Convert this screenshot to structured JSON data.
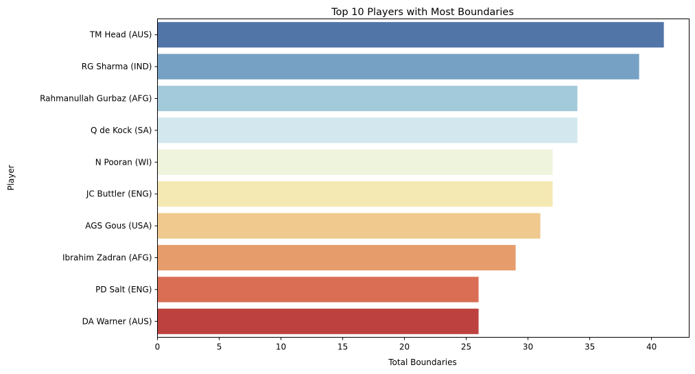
{
  "chart_data": {
    "type": "bar",
    "orientation": "horizontal",
    "title": "Top 10 Players with Most Boundaries",
    "xlabel": "Total Boundaries",
    "ylabel": "Player",
    "xlim": [
      0,
      43.05
    ],
    "xticks": [
      0,
      5,
      10,
      15,
      20,
      25,
      30,
      35,
      40
    ],
    "grid": false,
    "categories": [
      "TM Head (AUS)",
      "RG Sharma (IND)",
      "Rahmanullah Gurbaz (AFG)",
      "Q de Kock (SA)",
      "N Pooran (WI)",
      "JC Buttler (ENG)",
      "AGS Gous (USA)",
      "Ibrahim Zadran (AFG)",
      "PD Salt (ENG)",
      "DA Warner (AUS)"
    ],
    "values": [
      41,
      39,
      34,
      34,
      32,
      32,
      31,
      29,
      26,
      26
    ],
    "colors": [
      "#5275a8",
      "#76a1c4",
      "#a3cadb",
      "#d3e7ee",
      "#eff4dc",
      "#f5e9b3",
      "#efc98e",
      "#e79d6b",
      "#d96e55",
      "#bd423f"
    ]
  }
}
